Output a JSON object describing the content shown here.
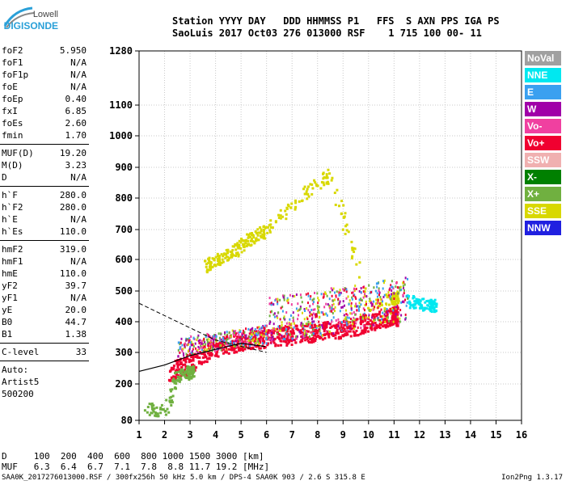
{
  "logo": {
    "line1": "Lowell",
    "line2": "DIGISONDE"
  },
  "header": {
    "line1": "Station YYYY DAY   DDD HHMMSS P1   FFS  S AXN PPS IGA PS",
    "line2": "SaoLuis 2017 Oct03 276 013000 RSF    1 715 100 00- 11"
  },
  "params": {
    "group1": [
      {
        "k": "foF2",
        "v": "5.950"
      },
      {
        "k": "foF1",
        "v": "N/A"
      },
      {
        "k": "foF1p",
        "v": "N/A"
      },
      {
        "k": "foE",
        "v": "N/A"
      },
      {
        "k": "foEp",
        "v": "0.40"
      },
      {
        "k": "fxI",
        "v": "6.85"
      },
      {
        "k": "foEs",
        "v": "2.60"
      },
      {
        "k": "fmin",
        "v": "1.70"
      }
    ],
    "group2": [
      {
        "k": "MUF(D)",
        "v": "19.20"
      },
      {
        "k": "M(D)",
        "v": "3.23"
      },
      {
        "k": "D",
        "v": "N/A"
      }
    ],
    "group3": [
      {
        "k": "h`F",
        "v": "280.0"
      },
      {
        "k": "h`F2",
        "v": "280.0"
      },
      {
        "k": "h`E",
        "v": "N/A"
      },
      {
        "k": "h`Es",
        "v": "110.0"
      }
    ],
    "group4": [
      {
        "k": "hmF2",
        "v": "319.0"
      },
      {
        "k": "hmF1",
        "v": "N/A"
      },
      {
        "k": "hmE",
        "v": "110.0"
      },
      {
        "k": "yF2",
        "v": "39.7"
      },
      {
        "k": "yF1",
        "v": "N/A"
      },
      {
        "k": "yE",
        "v": "20.0"
      },
      {
        "k": "B0",
        "v": "44.7"
      },
      {
        "k": "B1",
        "v": "1.38"
      }
    ],
    "clevel": {
      "k": "C-level",
      "v": "33"
    },
    "auto": [
      "Auto:",
      "Artist5",
      "500200"
    ]
  },
  "footer": {
    "d_row": "D     100  200  400  600  800 1000 1500 3000 [km]",
    "muf_row": "MUF   6.3  6.4  6.7  7.1  7.8  8.8 11.7 19.2 [MHz]",
    "fileinfo": "SAA0K_2017276013000.RSF / 300fx256h 50 kHz 5.0 km / DPS-4 SAA0K 903 / 2.6 S 315.8 E",
    "version": "Ion2Png 1.3.17"
  },
  "legend": [
    {
      "label": "NoVal",
      "color": "#a0a0a0"
    },
    {
      "label": "NNE",
      "color": "#00e8f0"
    },
    {
      "label": "E",
      "color": "#3aa0f0"
    },
    {
      "label": "W",
      "color": "#a000a8"
    },
    {
      "label": "Vo-",
      "color": "#f040a0"
    },
    {
      "label": "Vo+",
      "color": "#f00030"
    },
    {
      "label": "SSW",
      "color": "#f0b0b0"
    },
    {
      "label": "X-",
      "color": "#008000"
    },
    {
      "label": "X+",
      "color": "#70b040"
    },
    {
      "label": "SSE",
      "color": "#d8d800"
    },
    {
      "label": "NNW",
      "color": "#2020e0"
    }
  ],
  "chart_data": {
    "type": "scatter",
    "xlabel": "",
    "ylabel": "",
    "xlim": [
      1,
      16
    ],
    "ylim": [
      80,
      1280
    ],
    "x_ticks": [
      1,
      2,
      3,
      4,
      5,
      6,
      7,
      8,
      9,
      10,
      11,
      12,
      13,
      14,
      15,
      16
    ],
    "y_ticks": [
      80,
      200,
      300,
      400,
      500,
      600,
      700,
      800,
      900,
      1000,
      1100,
      1280
    ],
    "y_scale": "ionogram-compressed (dense below 400 km)",
    "series": [
      {
        "name": "Vo+",
        "points": [
          [
            2.2,
            240
          ],
          [
            3.0,
            270
          ],
          [
            4.0,
            320
          ],
          [
            5.0,
            340
          ],
          [
            6.0,
            350
          ],
          [
            7.0,
            360
          ],
          [
            8.0,
            370
          ],
          [
            9.0,
            380
          ],
          [
            10.0,
            400
          ],
          [
            11.0,
            420
          ]
        ]
      },
      {
        "name": "SSE",
        "points": [
          [
            3.5,
            580
          ],
          [
            4.0,
            600
          ],
          [
            4.5,
            620
          ],
          [
            5.0,
            650
          ],
          [
            5.5,
            680
          ],
          [
            6.0,
            700
          ],
          [
            7.5,
            820
          ],
          [
            8.5,
            880
          ],
          [
            10.0,
            450
          ],
          [
            11.0,
            480
          ]
        ]
      },
      {
        "name": "NNE",
        "points": [
          [
            11.5,
            470
          ],
          [
            12.0,
            460
          ],
          [
            12.5,
            455
          ]
        ]
      },
      {
        "name": "X+",
        "points": [
          [
            1.3,
            120
          ],
          [
            2.0,
            115
          ],
          [
            2.5,
            230
          ],
          [
            3.0,
            240
          ]
        ]
      }
    ],
    "profile_curve": [
      [
        1.0,
        240
      ],
      [
        2.0,
        260
      ],
      [
        3.0,
        290
      ],
      [
        4.0,
        310
      ],
      [
        5.0,
        330
      ],
      [
        5.95,
        319
      ]
    ],
    "dashed_curve": [
      [
        1.0,
        460
      ],
      [
        2.0,
        420
      ],
      [
        3.0,
        380
      ],
      [
        4.0,
        340
      ],
      [
        5.0,
        320
      ],
      [
        6.0,
        300
      ]
    ]
  }
}
